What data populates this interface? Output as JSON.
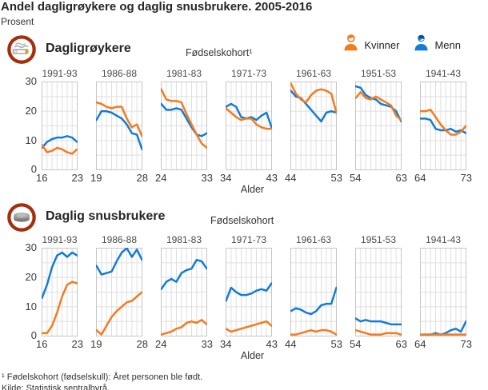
{
  "title": "Andel dagligrøykere og daglig snusbrukere. 2005-2016",
  "unit": "Prosent",
  "legend": [
    {
      "label": "Kvinner",
      "icon": "woman-icon",
      "color": "#f47b20"
    },
    {
      "label": "Menn",
      "icon": "man-icon",
      "color": "#147cd4"
    }
  ],
  "axis": {
    "x_label": "Alder",
    "y_ticks": [
      30,
      20,
      10,
      0
    ],
    "ylim": [
      0,
      30
    ]
  },
  "colors": {
    "kvinner": "#f47b20",
    "menn": "#147cd4",
    "menn_dark": "#0a4e93",
    "icon_ring": "#a72e0c",
    "grid": "#dfdfdf",
    "panel_border": "#c6c6c6"
  },
  "footnotes": [
    "¹ Fødelskohort (fødselskull): Året personen ble født.",
    "Kilde: Statistisk sentralbyrå."
  ],
  "chart_data": {
    "type": "line",
    "ylim": [
      0,
      30
    ],
    "grid": true,
    "series": [
      "Kvinner",
      "Menn"
    ],
    "legend_position": "top-right",
    "groups": [
      {
        "heading": "Dagligrøykere",
        "icon": "cigarette-icon",
        "cohort_axis_label": "Fødselskohort¹",
        "panels": [
          {
            "cohort": "1991-93",
            "age_start": 16,
            "age_end": 23,
            "kvinner": [
              8.5,
              6,
              6.5,
              7.5,
              7,
              6,
              5.5,
              7
            ],
            "menn": [
              7.5,
              9.5,
              10.5,
              11,
              11,
              11.5,
              11,
              9.5
            ]
          },
          {
            "cohort": "1986-88",
            "age_start": 19,
            "age_end": 28,
            "kvinner": [
              23,
              22.5,
              21.5,
              21,
              21.5,
              21.5,
              17.5,
              14.5,
              15.5,
              11.5
            ],
            "menn": [
              17,
              20,
              20,
              19.5,
              18.5,
              17.5,
              15.5,
              12.5,
              12,
              7
            ]
          },
          {
            "cohort": "1981-83",
            "age_start": 24,
            "age_end": 33,
            "kvinner": [
              27.5,
              24,
              23.5,
              23.5,
              23,
              19,
              15.5,
              12,
              9,
              7.5
            ],
            "menn": [
              22.5,
              20.5,
              20.5,
              21,
              20.5,
              17.5,
              14.5,
              12,
              11.5,
              12.5
            ]
          },
          {
            "cohort": "1971-73",
            "age_start": 34,
            "age_end": 43,
            "kvinner": [
              21,
              19.5,
              18,
              17,
              17.5,
              17.5,
              15.5,
              14.5,
              14,
              14
            ],
            "menn": [
              21.5,
              22.5,
              21.5,
              18,
              17.5,
              18,
              17,
              18.5,
              19.5,
              14.5
            ]
          },
          {
            "cohort": "1961-63",
            "age_start": 44,
            "age_end": 53,
            "kvinner": [
              29.5,
              26,
              24,
              23,
              25.5,
              27,
              27.5,
              27,
              26,
              19.5
            ],
            "menn": [
              27,
              25,
              24.5,
              22.5,
              20.5,
              18.5,
              16.5,
              19.5,
              20,
              19.5
            ]
          },
          {
            "cohort": "1951-53",
            "age_start": 54,
            "age_end": 63,
            "kvinner": [
              24.5,
              26.5,
              24.5,
              24,
              25,
              24,
              23,
              22,
              18.5,
              17
            ],
            "menn": [
              28.5,
              28,
              25.5,
              24.5,
              24,
              22.5,
              22,
              21.5,
              20,
              16.5
            ]
          },
          {
            "cohort": "1941-43",
            "age_start": 64,
            "age_end": 73,
            "kvinner": [
              20,
              20,
              20.5,
              18,
              15.5,
              13.5,
              12,
              12,
              13,
              15
            ],
            "menn": [
              17.5,
              17.5,
              17,
              14,
              13.5,
              13.5,
              14,
              13,
              13.5,
              12.5
            ]
          }
        ]
      },
      {
        "heading": "Daglig snusbrukere",
        "icon": "snus-icon",
        "cohort_axis_label": "Fødselskohort",
        "panels": [
          {
            "cohort": "1991-93",
            "age_start": 16,
            "age_end": 23,
            "kvinner": [
              1,
              1,
              3.5,
              8,
              13.5,
              17.5,
              18.5,
              18
            ],
            "menn": [
              13,
              17.5,
              23.5,
              27.5,
              28.5,
              27,
              28.5,
              27.5
            ]
          },
          {
            "cohort": "1986-88",
            "age_start": 19,
            "age_end": 28,
            "kvinner": [
              2,
              0.5,
              3.5,
              6.5,
              8.5,
              10,
              11.5,
              12,
              13.5,
              15
            ],
            "menn": [
              24,
              21,
              21.5,
              22,
              25.5,
              28.5,
              30,
              27,
              29.5,
              26
            ]
          },
          {
            "cohort": "1981-83",
            "age_start": 24,
            "age_end": 33,
            "kvinner": [
              0.5,
              1,
              1.5,
              2.5,
              3,
              4.5,
              5,
              4.5,
              5.5,
              4
            ],
            "menn": [
              16,
              18.5,
              19.5,
              18.5,
              21.5,
              22.5,
              23,
              26,
              25.5,
              23
            ]
          },
          {
            "cohort": "1971-73",
            "age_start": 34,
            "age_end": 43,
            "kvinner": [
              2.5,
              1.5,
              2,
              2.5,
              3,
              3.5,
              4,
              4.5,
              5,
              3.5
            ],
            "menn": [
              12,
              16.5,
              15,
              14,
              14,
              14.5,
              15.5,
              16,
              15.5,
              18
            ]
          },
          {
            "cohort": "1961-63",
            "age_start": 44,
            "age_end": 53,
            "kvinner": [
              0.5,
              0.5,
              1,
              1.5,
              2,
              1.5,
              2,
              2,
              1.5,
              0.5
            ],
            "menn": [
              8.5,
              9.5,
              9,
              8,
              7.5,
              8.5,
              10.5,
              11,
              11,
              16.5
            ]
          },
          {
            "cohort": "1951-53",
            "age_start": 54,
            "age_end": 63,
            "kvinner": [
              2,
              1.5,
              1,
              0.5,
              0.5,
              0.5,
              1,
              1,
              1,
              0.5
            ],
            "menn": [
              6,
              5,
              5.5,
              5,
              5,
              5,
              4.5,
              4,
              4,
              4
            ]
          },
          {
            "cohort": "1941-43",
            "age_start": 64,
            "age_end": 73,
            "kvinner": [
              0.5,
              0.5,
              0.5,
              0.5,
              0.5,
              0.5,
              0.5,
              0.5,
              0.5,
              0.5
            ],
            "menn": [
              0.5,
              0.5,
              0.5,
              1,
              0.5,
              1,
              2,
              2.5,
              1.5,
              5
            ]
          }
        ]
      }
    ]
  }
}
